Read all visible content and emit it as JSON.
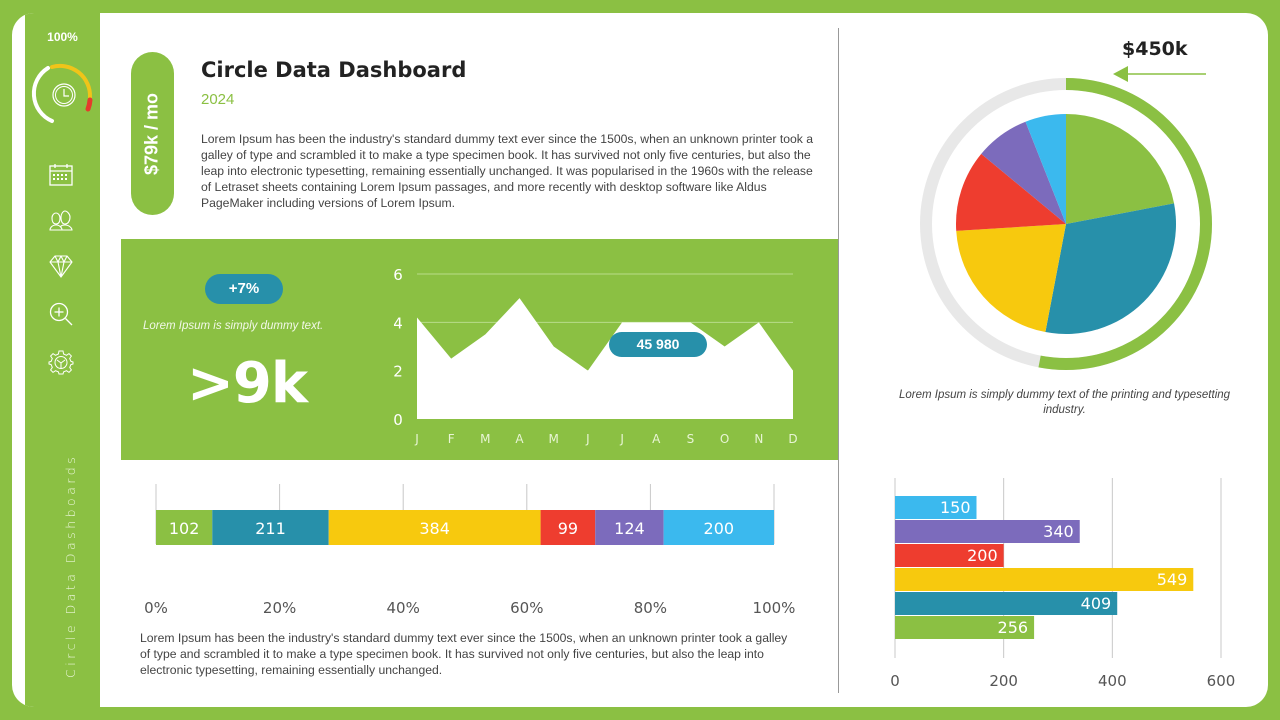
{
  "sidebar": {
    "gauge_percent": "100%",
    "icons": [
      "calendar-icon",
      "users-icon",
      "diamond-icon",
      "zoom-in-icon",
      "settings-icon"
    ],
    "vertical_label": "Circle Data Dashboards"
  },
  "header": {
    "price_pill": "$79k / mo",
    "title": "Circle Data Dashboard",
    "year": "2024",
    "description": "Lorem Ipsum has been the industry's standard dummy text ever since the 1500s, when an unknown printer took a galley of type and scrambled it to make a type specimen book. It has survived not only five centuries, but also the leap into electronic typesetting, remaining essentially unchanged. It was popularised in the 1960s with the release of Letraset sheets containing Lorem Ipsum passages, and more recently with desktop software like Aldus PageMaker including versions of Lorem Ipsum."
  },
  "kpi": {
    "change_badge": "+7%",
    "note": "Lorem Ipsum is simply dummy text.",
    "big_value": ">9k",
    "chart_badge": "45 980"
  },
  "bottom": {
    "description": "Lorem Ipsum has been the industry's standard dummy text ever since the 1500s, when an unknown printer took a galley of type and scrambled it to make a type specimen book. It has survived not only five centuries, but also the leap into electronic typesetting, remaining essentially unchanged."
  },
  "pie_panel": {
    "total_label": "$450k",
    "ring_progress": 0.53,
    "note": "Lorem Ipsum is simply dummy text of the printing and typesetting industry."
  },
  "colors": {
    "green": "#8BC043",
    "teal": "#2790AA",
    "yellow": "#F7C90E",
    "red": "#EE3D2F",
    "purple": "#7C6BBC",
    "sky": "#3BB9EE",
    "gauge_yellow": "#F0C419",
    "gauge_red": "#E53B2C"
  },
  "chart_data": [
    {
      "type": "area",
      "title": "",
      "categories": [
        "J",
        "F",
        "M",
        "A",
        "M",
        "J",
        "J",
        "A",
        "S",
        "O",
        "N",
        "D"
      ],
      "values": [
        4.2,
        2.5,
        3.5,
        5,
        3,
        2,
        4,
        4,
        4,
        3,
        4,
        2
      ],
      "yticks": [
        0,
        2,
        4,
        6
      ],
      "ylim": [
        0,
        6
      ],
      "annotation": "45 980",
      "grid": true
    },
    {
      "type": "bar",
      "orientation": "horizontal-stacked-100",
      "series": [
        {
          "name": "green",
          "value": 102
        },
        {
          "name": "teal",
          "value": 211
        },
        {
          "name": "yellow",
          "value": 384
        },
        {
          "name": "red",
          "value": 99
        },
        {
          "name": "purple",
          "value": 124
        },
        {
          "name": "sky",
          "value": 200
        }
      ],
      "xticks": [
        "0%",
        "20%",
        "40%",
        "60%",
        "80%",
        "100%"
      ]
    },
    {
      "type": "pie",
      "slices": [
        {
          "name": "green",
          "value": 22
        },
        {
          "name": "teal",
          "value": 31
        },
        {
          "name": "yellow",
          "value": 21
        },
        {
          "name": "red",
          "value": 12
        },
        {
          "name": "purple",
          "value": 8
        },
        {
          "name": "sky",
          "value": 6
        }
      ],
      "annotation": "$450k"
    },
    {
      "type": "bar",
      "orientation": "horizontal",
      "categories": [
        "sky",
        "purple",
        "red",
        "yellow",
        "teal",
        "green"
      ],
      "values": [
        150,
        340,
        200,
        549,
        409,
        256
      ],
      "xticks": [
        0,
        200,
        400,
        600
      ],
      "xlim": [
        0,
        600
      ],
      "grid": true
    }
  ]
}
